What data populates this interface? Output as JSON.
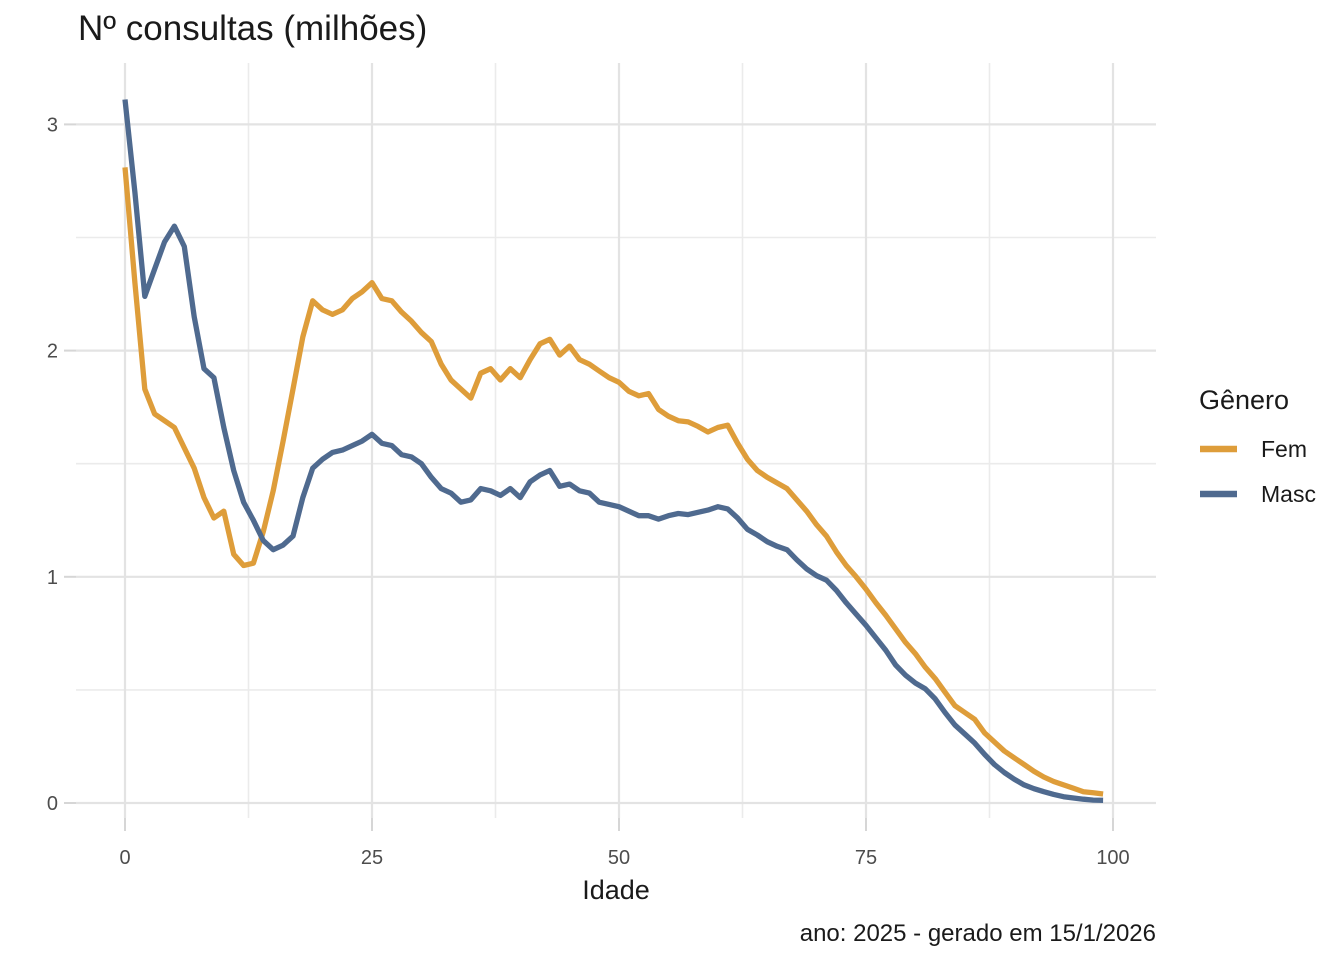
{
  "title": "Nº consultas (milhões)",
  "caption": "ano: 2025 - gerado em 15/1/2026",
  "x_axis": {
    "label": "Idade",
    "ticks": [
      0,
      25,
      50,
      75,
      100
    ],
    "minor_ticks": [
      12.5,
      37.5,
      62.5,
      87.5
    ]
  },
  "y_axis": {
    "ticks": [
      0,
      1,
      2,
      3
    ],
    "minor_ticks": [
      0.5,
      1.5,
      2.5
    ]
  },
  "legend": {
    "title": "Gênero",
    "items": [
      {
        "label": "Fem",
        "color": "#DE9D3A"
      },
      {
        "label": "Masc",
        "color": "#4F6A8F"
      }
    ]
  },
  "chart_data": {
    "type": "line",
    "title": "Nº consultas (milhões)",
    "xlabel": "Idade",
    "ylabel": "Nº consultas (milhões)",
    "xlim": [
      -5,
      104
    ],
    "ylim": [
      -0.07,
      3.27
    ],
    "grid": true,
    "legend_position": "right",
    "x": [
      0,
      1,
      2,
      3,
      4,
      5,
      6,
      7,
      8,
      9,
      10,
      11,
      12,
      13,
      14,
      15,
      16,
      17,
      18,
      19,
      20,
      21,
      22,
      23,
      24,
      25,
      26,
      27,
      28,
      29,
      30,
      31,
      32,
      33,
      34,
      35,
      36,
      37,
      38,
      39,
      40,
      41,
      42,
      43,
      44,
      45,
      46,
      47,
      48,
      49,
      50,
      51,
      52,
      53,
      54,
      55,
      56,
      57,
      58,
      59,
      60,
      61,
      62,
      63,
      64,
      65,
      66,
      67,
      68,
      69,
      70,
      71,
      72,
      73,
      74,
      75,
      76,
      77,
      78,
      79,
      80,
      81,
      82,
      83,
      84,
      85,
      86,
      87,
      88,
      89,
      90,
      91,
      92,
      93,
      94,
      95,
      96,
      97,
      98,
      99
    ],
    "series": [
      {
        "name": "Fem",
        "color": "#DE9D3A",
        "values": [
          2.81,
          2.3,
          1.83,
          1.72,
          1.69,
          1.66,
          1.57,
          1.48,
          1.35,
          1.26,
          1.29,
          1.1,
          1.05,
          1.06,
          1.2,
          1.38,
          1.6,
          1.83,
          2.06,
          2.22,
          2.18,
          2.16,
          2.18,
          2.23,
          2.26,
          2.3,
          2.23,
          2.22,
          2.17,
          2.13,
          2.08,
          2.04,
          1.94,
          1.87,
          1.83,
          1.79,
          1.9,
          1.92,
          1.87,
          1.92,
          1.88,
          1.96,
          2.03,
          2.05,
          1.98,
          2.02,
          1.96,
          1.94,
          1.91,
          1.88,
          1.86,
          1.82,
          1.8,
          1.81,
          1.74,
          1.71,
          1.69,
          1.685,
          1.665,
          1.64,
          1.66,
          1.67,
          1.59,
          1.52,
          1.47,
          1.44,
          1.415,
          1.39,
          1.34,
          1.29,
          1.23,
          1.18,
          1.11,
          1.05,
          1.0,
          0.945,
          0.885,
          0.83,
          0.77,
          0.71,
          0.66,
          0.6,
          0.55,
          0.49,
          0.43,
          0.4,
          0.37,
          0.31,
          0.27,
          0.23,
          0.2,
          0.17,
          0.14,
          0.115,
          0.095,
          0.08,
          0.065,
          0.05,
          0.045,
          0.04
        ]
      },
      {
        "name": "Masc",
        "color": "#4F6A8F",
        "values": [
          3.11,
          2.7,
          2.24,
          2.36,
          2.48,
          2.55,
          2.46,
          2.15,
          1.92,
          1.88,
          1.66,
          1.47,
          1.33,
          1.25,
          1.16,
          1.12,
          1.14,
          1.18,
          1.35,
          1.48,
          1.52,
          1.55,
          1.56,
          1.58,
          1.6,
          1.63,
          1.59,
          1.58,
          1.54,
          1.53,
          1.5,
          1.44,
          1.39,
          1.37,
          1.33,
          1.34,
          1.39,
          1.38,
          1.36,
          1.39,
          1.35,
          1.42,
          1.45,
          1.47,
          1.4,
          1.41,
          1.38,
          1.37,
          1.33,
          1.32,
          1.31,
          1.29,
          1.27,
          1.27,
          1.255,
          1.27,
          1.28,
          1.275,
          1.285,
          1.295,
          1.31,
          1.3,
          1.26,
          1.21,
          1.185,
          1.155,
          1.135,
          1.12,
          1.075,
          1.035,
          1.005,
          0.985,
          0.94,
          0.885,
          0.835,
          0.785,
          0.73,
          0.675,
          0.61,
          0.565,
          0.53,
          0.505,
          0.46,
          0.4,
          0.345,
          0.305,
          0.265,
          0.215,
          0.17,
          0.135,
          0.105,
          0.08,
          0.063,
          0.05,
          0.038,
          0.028,
          0.022,
          0.017,
          0.013,
          0.012
        ]
      }
    ]
  }
}
